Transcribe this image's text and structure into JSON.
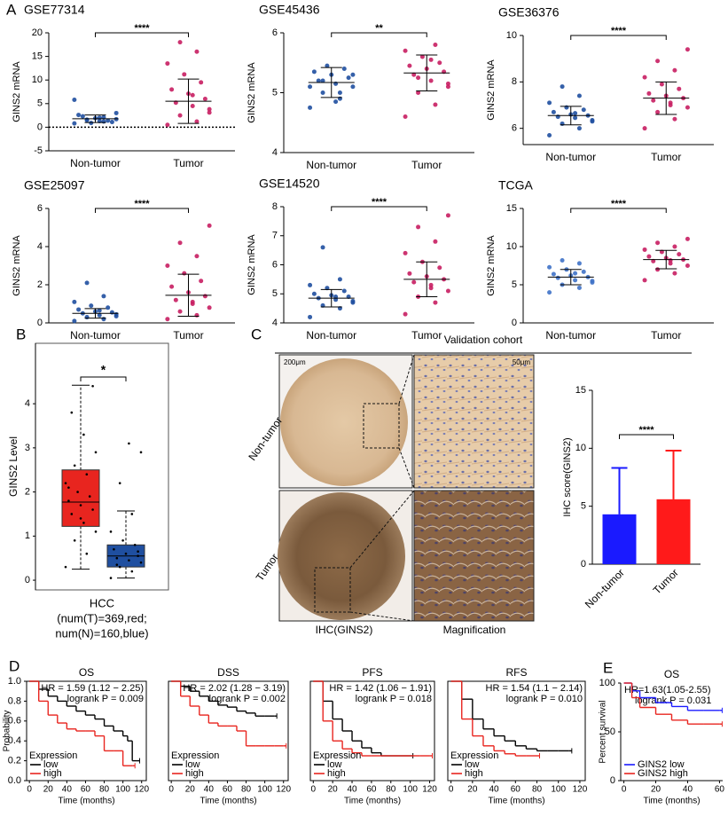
{
  "chart_data": [
    {
      "type": "dotplot",
      "panel": "A",
      "title": "GSE77314",
      "ylabel": "GINS2 mRNA",
      "categories": [
        "Non-tumor",
        "Tumor"
      ],
      "colors": [
        "#1f4fa0",
        "#c81e62"
      ],
      "ylim": [
        -5,
        20
      ],
      "yticks": [
        -5,
        0,
        5,
        10,
        15,
        20
      ],
      "zero_line": true,
      "significance": "****",
      "values": [
        1.8,
        5.5
      ],
      "errors": [
        0.8,
        4.7
      ],
      "points": [
        [
          0.8,
          1.2,
          1.5,
          1.7,
          2.0,
          2.3,
          1.1,
          1.9,
          2.6,
          1.4,
          0.9,
          5.8,
          2.1,
          1.6,
          3.0,
          1.3
        ],
        [
          0.5,
          1.2,
          2.5,
          3.8,
          4.5,
          5.2,
          6.0,
          7.1,
          8.0,
          9.5,
          11.2,
          13.5,
          16.0,
          18.0,
          3.1,
          6.8
        ]
      ]
    },
    {
      "type": "dotplot",
      "title": "GSE45436",
      "ylabel": "GINS2 mRNA",
      "categories": [
        "Non-tumor",
        "Tumor"
      ],
      "colors": [
        "#1f4fa0",
        "#c81e62"
      ],
      "ylim": [
        4,
        6
      ],
      "yticks": [
        4,
        5,
        6
      ],
      "significance": "**",
      "values": [
        5.17,
        5.33
      ],
      "errors": [
        0.25,
        0.3
      ],
      "points": [
        [
          4.75,
          4.9,
          5.0,
          5.1,
          5.15,
          5.2,
          5.25,
          5.3,
          5.35,
          5.4,
          5.45,
          5.1,
          5.0,
          5.2,
          5.3,
          4.85
        ],
        [
          4.6,
          4.8,
          5.0,
          5.1,
          5.2,
          5.3,
          5.35,
          5.4,
          5.45,
          5.5,
          5.6,
          5.7,
          5.8,
          5.25,
          5.15,
          5.55
        ]
      ]
    },
    {
      "type": "dotplot",
      "title": "GSE36376",
      "ylabel": "GINS2 mRNA",
      "categories": [
        "Non-tumor",
        "Tumor"
      ],
      "colors": [
        "#1f4fa0",
        "#c81e62"
      ],
      "ylim": [
        5.3,
        10
      ],
      "yticks": [
        6,
        8,
        10
      ],
      "significance": "****",
      "values": [
        6.55,
        7.3
      ],
      "errors": [
        0.4,
        0.7
      ],
      "points": [
        [
          5.7,
          6.0,
          6.2,
          6.35,
          6.45,
          6.5,
          6.55,
          6.6,
          6.7,
          6.8,
          6.9,
          7.1,
          7.4,
          7.8,
          6.3,
          6.65
        ],
        [
          6.0,
          6.4,
          6.7,
          6.9,
          7.1,
          7.2,
          7.3,
          7.4,
          7.5,
          7.7,
          7.9,
          8.2,
          8.5,
          8.9,
          9.4,
          7.0
        ]
      ]
    },
    {
      "type": "dotplot",
      "title": "GSE25097",
      "ylabel": "GINS2 mRNA",
      "categories": [
        "Non-tumor",
        "Tumor"
      ],
      "colors": [
        "#1f4fa0",
        "#c81e62"
      ],
      "ylim": [
        0,
        6
      ],
      "yticks": [
        0,
        2,
        4,
        6
      ],
      "significance": "****",
      "values": [
        0.5,
        1.45
      ],
      "errors": [
        0.25,
        1.1
      ],
      "points": [
        [
          0.1,
          0.2,
          0.3,
          0.35,
          0.4,
          0.5,
          0.55,
          0.6,
          0.7,
          0.8,
          0.9,
          1.1,
          1.4,
          2.1,
          0.45,
          0.65
        ],
        [
          0.2,
          0.4,
          0.6,
          0.8,
          1.0,
          1.2,
          1.4,
          1.6,
          1.9,
          2.2,
          2.6,
          3.0,
          3.5,
          4.2,
          5.1,
          1.1
        ]
      ]
    },
    {
      "type": "dotplot",
      "title": "GSE14520",
      "ylabel": "GINS2 mRNA",
      "categories": [
        "Non-tumor",
        "Tumor"
      ],
      "colors": [
        "#1f4fa0",
        "#c81e62"
      ],
      "ylim": [
        4,
        8
      ],
      "yticks": [
        4,
        5,
        6,
        7,
        8
      ],
      "significance": "****",
      "values": [
        4.85,
        5.5
      ],
      "errors": [
        0.3,
        0.6
      ],
      "points": [
        [
          4.2,
          4.5,
          4.6,
          4.7,
          4.8,
          4.85,
          4.9,
          4.95,
          5.0,
          5.1,
          5.2,
          5.3,
          5.5,
          6.6,
          4.75,
          4.9
        ],
        [
          4.3,
          4.7,
          4.9,
          5.1,
          5.3,
          5.4,
          5.5,
          5.6,
          5.7,
          5.9,
          6.1,
          6.4,
          6.8,
          7.3,
          7.7,
          5.2
        ]
      ]
    },
    {
      "type": "dotplot",
      "title": "TCGA",
      "ylabel": "GINS2 mRNA",
      "categories": [
        "Non-tumor",
        "Tumor"
      ],
      "colors": [
        "#3f72c8",
        "#c81e62"
      ],
      "ylim": [
        0,
        15
      ],
      "yticks": [
        0,
        5,
        10,
        15
      ],
      "significance": "****",
      "values": [
        6.0,
        8.3
      ],
      "errors": [
        1.0,
        1.2
      ],
      "points": [
        [
          4.0,
          4.6,
          5.0,
          5.3,
          5.6,
          5.9,
          6.0,
          6.2,
          6.4,
          6.7,
          7.0,
          7.3,
          7.8,
          8.2,
          5.5,
          6.5
        ],
        [
          5.6,
          6.5,
          7.0,
          7.5,
          7.8,
          8.1,
          8.3,
          8.5,
          8.7,
          9.0,
          9.3,
          9.6,
          10.0,
          10.5,
          11.0,
          8.2
        ]
      ]
    },
    {
      "type": "box",
      "panel": "B",
      "ylabel": "GINS2 Level",
      "ylim": [
        -0.22,
        5.37
      ],
      "yticks": [
        0,
        1,
        2,
        3,
        4
      ],
      "significance": "*",
      "caption": [
        "HCC",
        "(num(T)=369,red;",
        "num(N)=160,blue)"
      ],
      "groups": [
        {
          "color": "#e8251f",
          "min": 0.25,
          "q1": 1.22,
          "median": 1.77,
          "q3": 2.5,
          "max": 4.42,
          "points": [
            0.3,
            0.6,
            0.9,
            1.1,
            1.3,
            1.5,
            1.6,
            1.7,
            1.8,
            1.9,
            2.0,
            2.2,
            2.4,
            2.6,
            2.9,
            3.3,
            3.8,
            4.4,
            1.4,
            2.1
          ]
        },
        {
          "color": "#1f4fa0",
          "min": 0.05,
          "q1": 0.3,
          "median": 0.55,
          "q3": 0.8,
          "max": 1.57,
          "points": [
            0.05,
            0.2,
            0.3,
            0.4,
            0.45,
            0.5,
            0.55,
            0.6,
            0.7,
            0.8,
            0.9,
            1.1,
            1.5,
            2.2,
            2.9,
            3.1,
            0.35,
            0.65
          ]
        }
      ]
    },
    {
      "type": "bar",
      "ylabel": "IHC score(GINS2)",
      "categories": [
        "Non-tumor",
        "Tumor"
      ],
      "colors": [
        "#1a1aff",
        "#ff1a1a"
      ],
      "values": [
        4.3,
        5.6
      ],
      "errors": [
        4.0,
        4.2
      ],
      "ylim": [
        0,
        15
      ],
      "yticks": [
        0,
        5,
        10,
        15
      ],
      "significance": "****"
    },
    {
      "type": "km",
      "panel": "D",
      "frame": true,
      "title": "OS",
      "hr_text": "HR = 1.59 (1.12 − 2.25)",
      "p_text": "logrank P = 0.009",
      "legend_title": "Expression",
      "ylabel": "Probability",
      "xlabel": "Time (months)",
      "xlim": [
        -3,
        125
      ],
      "xticks": [
        0,
        20,
        40,
        60,
        80,
        100,
        120
      ],
      "ylim": [
        0,
        1
      ],
      "yticks": [
        {
          "value": 0,
          "label": "0.0"
        },
        {
          "value": 0.2,
          "label": "0.2"
        },
        {
          "value": 0.4,
          "label": "0.4"
        },
        {
          "value": 0.6,
          "label": "0.6"
        },
        {
          "value": 0.8,
          "label": "0.8"
        },
        {
          "value": 1,
          "label": "1.0"
        }
      ],
      "series": [
        {
          "name": "low",
          "color": "#000000",
          "x": [
            0,
            10,
            20,
            30,
            40,
            50,
            60,
            70,
            80,
            90,
            100,
            105,
            110,
            115
          ],
          "values": [
            1,
            0.92,
            0.85,
            0.8,
            0.75,
            0.7,
            0.66,
            0.62,
            0.55,
            0.5,
            0.45,
            0.4,
            0.2,
            0.2
          ]
        },
        {
          "name": "high",
          "color": "#e8251f",
          "x": [
            0,
            10,
            20,
            30,
            40,
            50,
            60,
            70,
            80,
            90,
            100,
            110
          ],
          "values": [
            1,
            0.8,
            0.66,
            0.58,
            0.52,
            0.5,
            0.5,
            0.45,
            0.3,
            0.3,
            0.15,
            0.15
          ]
        }
      ]
    },
    {
      "type": "km",
      "frame": true,
      "title": "DSS",
      "hr_text": "HR = 2.02 (1.28 − 3.19)",
      "p_text": "logrank P = 0.002",
      "legend_title": "Expression",
      "xlabel": "Time (months)",
      "xlim": [
        -3,
        125
      ],
      "xticks": [
        0,
        20,
        40,
        60,
        80,
        100,
        120
      ],
      "ylim": [
        0,
        1
      ],
      "series": [
        {
          "name": "low",
          "color": "#000000",
          "x": [
            0,
            10,
            20,
            30,
            40,
            50,
            60,
            70,
            80,
            90,
            100,
            110
          ],
          "values": [
            1,
            0.95,
            0.9,
            0.85,
            0.8,
            0.76,
            0.74,
            0.7,
            0.68,
            0.65,
            0.65,
            0.65
          ]
        },
        {
          "name": "high",
          "color": "#e8251f",
          "x": [
            0,
            10,
            20,
            30,
            40,
            50,
            60,
            70,
            80,
            90,
            100,
            110,
            120
          ],
          "values": [
            1,
            0.85,
            0.75,
            0.66,
            0.58,
            0.55,
            0.55,
            0.5,
            0.35,
            0.35,
            0.35,
            0.35,
            0.35
          ]
        }
      ]
    },
    {
      "type": "km",
      "frame": true,
      "title": "PFS",
      "hr_text": "HR = 1.42 (1.06 − 1.91)",
      "p_text": "logrank P = 0.018",
      "legend_title": "Expression",
      "xlabel": "Time (months)",
      "xlim": [
        -3,
        125
      ],
      "xticks": [
        0,
        20,
        40,
        60,
        80,
        100,
        120
      ],
      "ylim": [
        0,
        1
      ],
      "series": [
        {
          "name": "low",
          "color": "#000000",
          "x": [
            0,
            10,
            20,
            30,
            40,
            50,
            60,
            70,
            80,
            90,
            100
          ],
          "values": [
            1,
            0.8,
            0.62,
            0.5,
            0.4,
            0.33,
            0.28,
            0.25,
            0.25,
            0.25,
            0.25
          ]
        },
        {
          "name": "high",
          "color": "#e8251f",
          "x": [
            0,
            10,
            20,
            30,
            40,
            50,
            60,
            70,
            80,
            90,
            100,
            110,
            120
          ],
          "values": [
            1,
            0.6,
            0.4,
            0.32,
            0.28,
            0.25,
            0.25,
            0.25,
            0.25,
            0.25,
            0.25,
            0.25,
            0.25
          ]
        }
      ]
    },
    {
      "type": "km",
      "frame": true,
      "title": "RFS",
      "hr_text": "HR = 1.54 (1.1 − 2.14)",
      "p_text": "logrank P = 0.010",
      "legend_title": "Expression",
      "xlabel": "Time (months)",
      "xlim": [
        -3,
        125
      ],
      "xticks": [
        0,
        20,
        40,
        60,
        80,
        100,
        120
      ],
      "ylim": [
        0,
        1
      ],
      "series": [
        {
          "name": "low",
          "color": "#000000",
          "x": [
            0,
            10,
            20,
            30,
            40,
            50,
            60,
            70,
            80,
            90,
            100,
            110
          ],
          "values": [
            1,
            0.82,
            0.62,
            0.52,
            0.45,
            0.4,
            0.35,
            0.32,
            0.3,
            0.3,
            0.3,
            0.3
          ]
        },
        {
          "name": "high",
          "color": "#e8251f",
          "x": [
            0,
            10,
            20,
            30,
            40,
            50,
            60,
            70,
            80
          ],
          "values": [
            1,
            0.62,
            0.45,
            0.35,
            0.3,
            0.27,
            0.25,
            0.25,
            0.25
          ]
        }
      ]
    },
    {
      "type": "km",
      "panel": "E",
      "frame": false,
      "title": "OS",
      "hr_text": "HR=1.63(1.05-2.55)",
      "p_text": "logrank P = 0.031",
      "ylabel": "Percent survival",
      "xlabel": "Time (months)",
      "xlim": [
        -2,
        62
      ],
      "xticks": [
        0,
        20,
        40,
        60
      ],
      "ylim": [
        0,
        100
      ],
      "yticks": [
        0,
        50,
        100
      ],
      "series": [
        {
          "name": "GINS2 low",
          "color": "#1a1aff",
          "x": [
            0,
            5,
            10,
            20,
            30,
            40,
            50,
            60
          ],
          "values": [
            100,
            92,
            85,
            80,
            76,
            72,
            72,
            72
          ]
        },
        {
          "name": "GINS2 high",
          "color": "#e8251f",
          "x": [
            0,
            5,
            10,
            20,
            30,
            40,
            50,
            60
          ],
          "values": [
            100,
            85,
            75,
            68,
            62,
            58,
            58,
            58
          ]
        }
      ]
    }
  ],
  "ihc_images": {
    "panel": "C",
    "title": "Validation cohort",
    "row_labels": [
      "Non-tumor",
      "Tumor"
    ],
    "column_labels": [
      "IHC(GINS2)",
      "Magnification"
    ],
    "scale_bars": [
      "200μm",
      "50μm"
    ]
  }
}
